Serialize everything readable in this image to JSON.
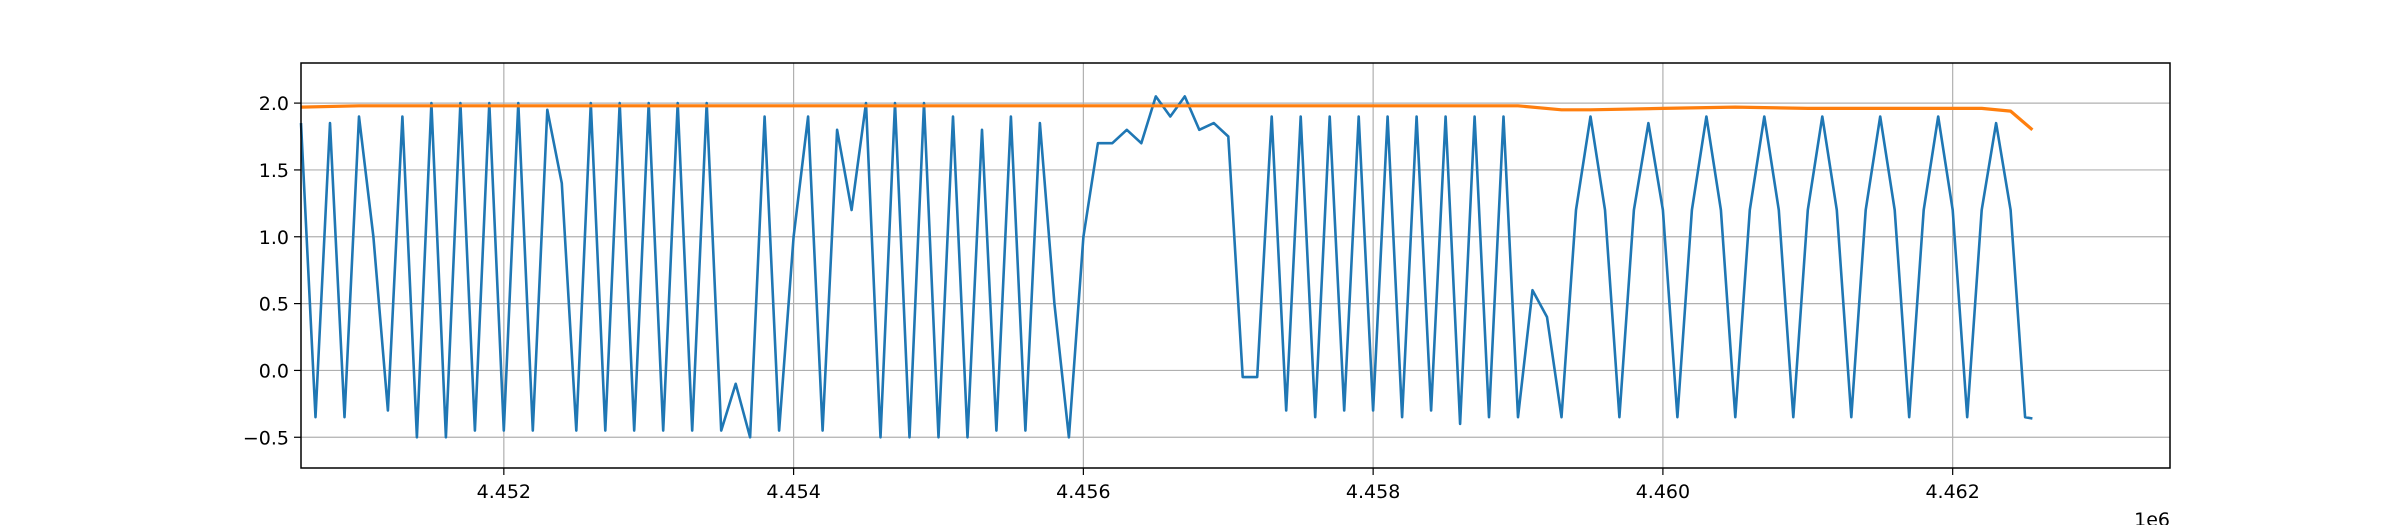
{
  "chart_data": {
    "type": "line",
    "title": "",
    "xlabel": "",
    "ylabel": "",
    "x_offset_label": "1e6",
    "xlim": [
      4450600,
      4463500
    ],
    "ylim": [
      -0.73,
      2.3
    ],
    "grid": true,
    "x_ticks": [
      4452000,
      4454000,
      4456000,
      4458000,
      4460000,
      4462000
    ],
    "x_tick_labels": [
      "4.452",
      "4.454",
      "4.456",
      "4.458",
      "4.460",
      "4.462"
    ],
    "y_ticks": [
      -0.5,
      0.0,
      0.5,
      1.0,
      1.5,
      2.0
    ],
    "y_tick_labels": [
      "−0.5",
      "0.0",
      "0.5",
      "1.0",
      "1.5",
      "2.0"
    ],
    "series": [
      {
        "color": "#1f77b4",
        "x": [
          4450600,
          4450700,
          4450800,
          4450900,
          4451000,
          4451100,
          4451200,
          4451300,
          4451400,
          4451500,
          4451600,
          4451700,
          4451800,
          4451900,
          4452000,
          4452100,
          4452200,
          4452300,
          4452400,
          4452500,
          4452600,
          4452700,
          4452800,
          4452900,
          4453000,
          4453100,
          4453200,
          4453300,
          4453400,
          4453500,
          4453600,
          4453700,
          4453800,
          4453900,
          4454000,
          4454100,
          4454200,
          4454300,
          4454400,
          4454500,
          4454600,
          4454700,
          4454800,
          4454900,
          4455000,
          4455100,
          4455200,
          4455300,
          4455400,
          4455500,
          4455600,
          4455700,
          4455800,
          4455900,
          4456000,
          4456100,
          4456200,
          4456300,
          4456400,
          4456500,
          4456600,
          4456700,
          4456800,
          4456900,
          4457000,
          4457100,
          4457200,
          4457300,
          4457400,
          4457500,
          4457600,
          4457700,
          4457800,
          4457900,
          4458000,
          4458100,
          4458200,
          4458300,
          4458400,
          4458500,
          4458600,
          4458700,
          4458800,
          4458900,
          4459000,
          4459100,
          4459200,
          4459300,
          4459400,
          4459500,
          4459600,
          4459700,
          4459800,
          4459900,
          4460000,
          4460100,
          4460200,
          4460300,
          4460400,
          4460500,
          4460600,
          4460700,
          4460800,
          4460900,
          4461000,
          4461100,
          4461200,
          4461300,
          4461400,
          4461500,
          4461600,
          4461700,
          4461800,
          4461900,
          4462000,
          4462100,
          4462200,
          4462300,
          4462400,
          4462500,
          4462550
        ],
        "y": [
          1.85,
          -0.35,
          1.85,
          -0.35,
          1.9,
          1.0,
          -0.3,
          1.9,
          -0.5,
          2.0,
          -0.5,
          2.0,
          -0.45,
          2.0,
          -0.45,
          2.0,
          -0.45,
          1.95,
          1.4,
          -0.45,
          2.0,
          -0.45,
          2.0,
          -0.45,
          2.0,
          -0.45,
          2.0,
          -0.45,
          2.0,
          -0.45,
          -0.1,
          -0.5,
          1.9,
          -0.45,
          1.0,
          1.9,
          -0.45,
          1.8,
          1.2,
          2.0,
          -0.5,
          2.0,
          -0.5,
          2.0,
          -0.5,
          1.9,
          -0.5,
          1.8,
          -0.45,
          1.9,
          -0.45,
          1.85,
          0.5,
          -0.5,
          1.0,
          1.7,
          1.7,
          1.8,
          1.7,
          2.05,
          1.9,
          2.05,
          1.8,
          1.85,
          1.75,
          -0.05,
          -0.05,
          1.9,
          -0.3,
          1.9,
          -0.35,
          1.9,
          -0.3,
          1.9,
          -0.3,
          1.9,
          -0.35,
          1.9,
          -0.3,
          1.9,
          -0.4,
          1.9,
          -0.35,
          1.9,
          -0.35,
          0.6,
          0.4,
          -0.35,
          1.2,
          1.9,
          1.2,
          -0.35,
          1.2,
          1.85,
          1.2,
          -0.35,
          1.2,
          1.9,
          1.2,
          -0.35,
          1.2,
          1.9,
          1.2,
          -0.35,
          1.2,
          1.9,
          1.2,
          -0.35,
          1.2,
          1.9,
          1.2,
          -0.35,
          1.2,
          1.9,
          1.2,
          -0.35,
          1.2,
          1.85,
          1.2,
          -0.35,
          -0.36
        ]
      },
      {
        "color": "#ff7f0e",
        "x": [
          4450600,
          4451000,
          4451500,
          4452000,
          4452500,
          4453000,
          4453500,
          4454000,
          4454500,
          4455000,
          4455500,
          4456000,
          4456500,
          4457000,
          4457500,
          4458000,
          4458500,
          4459000,
          4459300,
          4459500,
          4460000,
          4460500,
          4461000,
          4461500,
          4462000,
          4462200,
          4462400,
          4462550
        ],
        "y": [
          1.97,
          1.98,
          1.98,
          1.98,
          1.98,
          1.98,
          1.98,
          1.98,
          1.98,
          1.98,
          1.98,
          1.98,
          1.98,
          1.98,
          1.98,
          1.98,
          1.98,
          1.98,
          1.95,
          1.95,
          1.96,
          1.97,
          1.96,
          1.96,
          1.96,
          1.96,
          1.94,
          1.8
        ]
      }
    ]
  }
}
